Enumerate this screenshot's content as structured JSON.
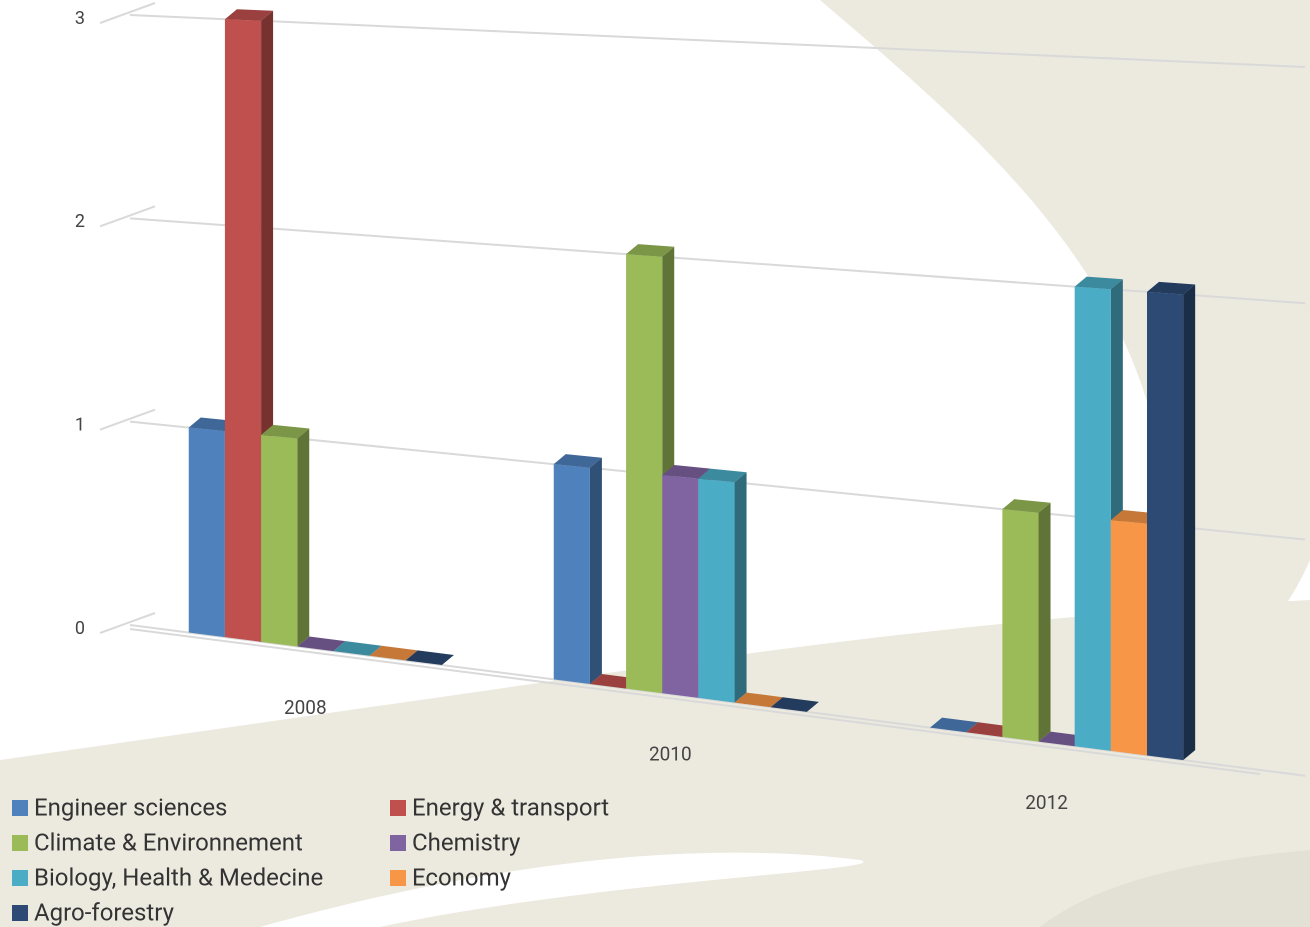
{
  "chart_data": {
    "type": "bar3d",
    "categories": [
      "2008",
      "2010",
      "2012"
    ],
    "series": [
      {
        "name": "Engineer sciences",
        "color": "#4f81bd",
        "values": [
          1,
          1,
          0
        ]
      },
      {
        "name": "Energy & transport",
        "color": "#c0504d",
        "values": [
          3,
          0,
          0
        ]
      },
      {
        "name": "Climate & Environnement",
        "color": "#9bbb59",
        "values": [
          1,
          2,
          1
        ]
      },
      {
        "name": "Chemistry",
        "color": "#8064a2",
        "values": [
          0,
          1,
          0
        ]
      },
      {
        "name": "Biology, Health & Medecine",
        "color": "#4bacc6",
        "values": [
          0,
          1,
          2
        ]
      },
      {
        "name": "Economy",
        "color": "#f79646",
        "values": [
          0,
          0,
          1
        ]
      },
      {
        "name": "Agro-forestry",
        "color": "#2c4a74",
        "values": [
          0,
          0,
          2
        ]
      }
    ],
    "ylim": [
      0,
      3
    ],
    "yticks": [
      0,
      1,
      2,
      3
    ],
    "grid": true
  }
}
